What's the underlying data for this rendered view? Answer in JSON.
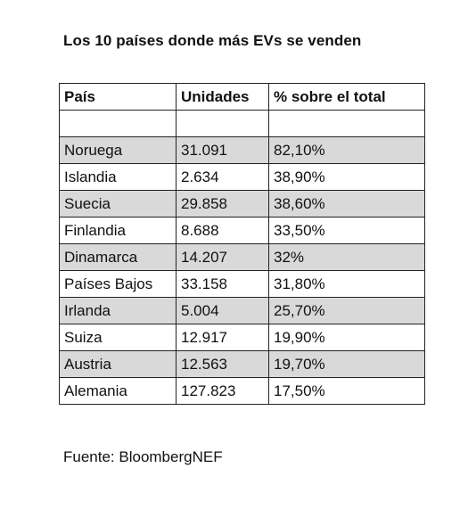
{
  "title": "Los 10 países donde más EVs se venden",
  "table": {
    "headers": [
      "País",
      "Unidades",
      "% sobre el total"
    ],
    "rows": [
      [
        "",
        "",
        ""
      ],
      [
        "Noruega",
        "31.091",
        "82,10%"
      ],
      [
        "Islandia",
        "2.634",
        "38,90%"
      ],
      [
        "Suecia",
        "29.858",
        "38,60%"
      ],
      [
        "Finlandia",
        "8.688",
        "33,50%"
      ],
      [
        "Dinamarca",
        "14.207",
        "32%"
      ],
      [
        "Países Bajos",
        "33.158",
        "31,80%"
      ],
      [
        "Irlanda",
        "5.004",
        "25,70%"
      ],
      [
        "Suiza",
        "12.917",
        "19,90%"
      ],
      [
        "Austria",
        "12.563",
        "19,70%"
      ],
      [
        "Alemania",
        "127.823",
        "17,50%"
      ]
    ],
    "shaded_fill": "#d9d9d9"
  },
  "source": "Fuente: BloombergNEF"
}
